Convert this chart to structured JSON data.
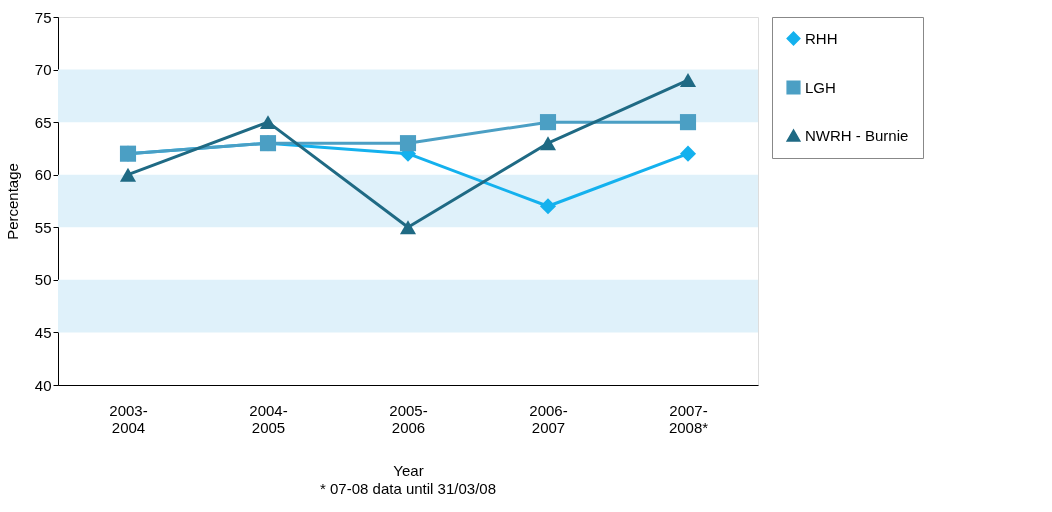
{
  "chart_data": {
    "type": "line",
    "xlabel": "Year",
    "ylabel": "Percentage",
    "categories": [
      "2003-2004",
      "2004-2005",
      "2005-2006",
      "2006-2007",
      "2007-2008*"
    ],
    "series": [
      {
        "name": "RHH",
        "color": "#14b1ee",
        "marker": "diamond",
        "values": [
          62,
          63,
          62,
          57,
          62
        ]
      },
      {
        "name": "LGH",
        "color": "#4b9fc4",
        "marker": "square",
        "values": [
          62,
          63,
          63,
          65,
          65
        ]
      },
      {
        "name": "NWRH - Burnie",
        "color": "#1f6a84",
        "marker": "triangle",
        "values": [
          60,
          65,
          55,
          63,
          69
        ]
      }
    ],
    "ylim": [
      40,
      75
    ],
    "yticks": [
      40,
      45,
      50,
      55,
      60,
      65,
      70,
      75
    ],
    "bands": [
      {
        "axis": "y",
        "from": 45,
        "to": 50,
        "color": "#dff1fa"
      },
      {
        "axis": "y",
        "from": 55,
        "to": 60,
        "color": "#dff1fa"
      },
      {
        "axis": "y",
        "from": 65,
        "to": 70,
        "color": "#dff1fa"
      }
    ],
    "grid": false,
    "legend": "right",
    "line_style": "solid",
    "annotations": [
      "* 07-08 data until 31/03/08"
    ]
  }
}
